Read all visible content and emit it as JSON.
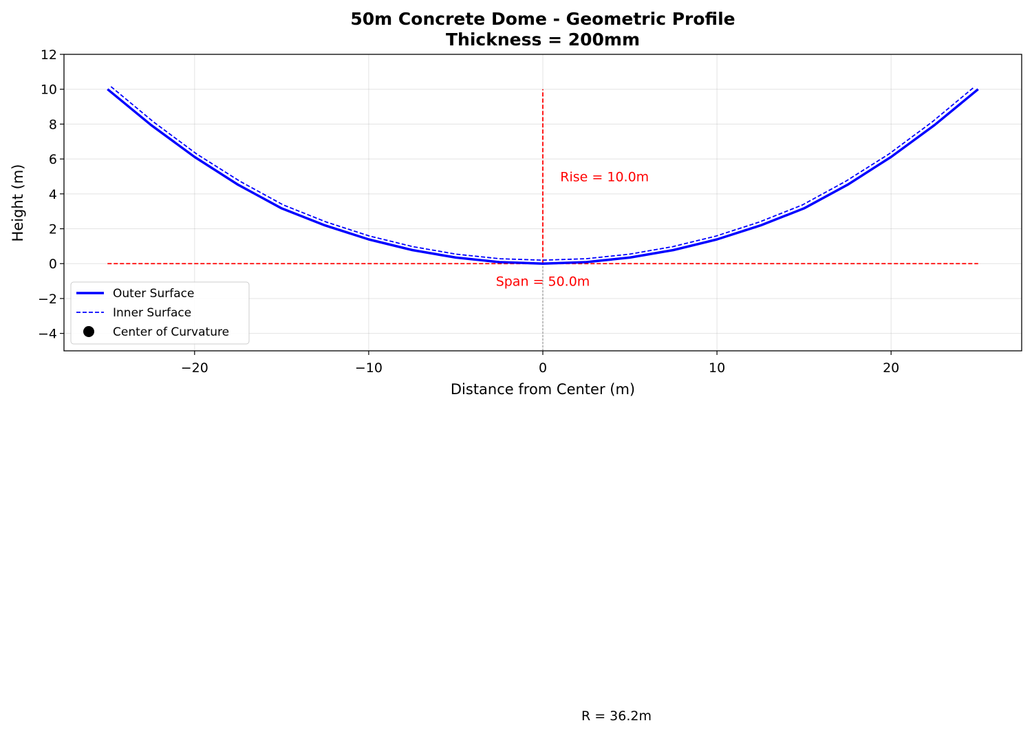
{
  "chart_data": {
    "type": "line",
    "title": "50m Concrete Dome - Geometric Profile",
    "subtitle": "Thickness = 200mm",
    "xlabel": "Distance from Center (m)",
    "ylabel": "Height (m)",
    "xlim": [
      -27.5,
      27.5
    ],
    "ylim": [
      -5,
      12
    ],
    "xticks": [
      -20,
      -10,
      0,
      10,
      20
    ],
    "xtick_labels": [
      "−20",
      "−10",
      "0",
      "10",
      "20"
    ],
    "yticks": [
      -4,
      -2,
      0,
      2,
      4,
      6,
      8,
      10,
      12
    ],
    "ytick_labels": [
      "−4",
      "−2",
      "0",
      "2",
      "4",
      "6",
      "8",
      "10",
      "12"
    ],
    "grid": true,
    "legend_position": "lower-left",
    "series": [
      {
        "name": "Outer Surface",
        "style": "solid",
        "color": "#0000ff",
        "x": [
          -25,
          -22.5,
          -20,
          -17.5,
          -15,
          -12.5,
          -10,
          -7.5,
          -5,
          -2.5,
          0,
          2.5,
          5,
          7.5,
          10,
          12.5,
          15,
          17.5,
          20,
          22.5,
          25
        ],
        "y": [
          10.0,
          7.95,
          6.12,
          4.52,
          3.17,
          2.19,
          1.39,
          0.78,
          0.35,
          0.09,
          0.0,
          0.09,
          0.35,
          0.78,
          1.39,
          2.19,
          3.17,
          4.52,
          6.12,
          7.95,
          10.0
        ]
      },
      {
        "name": "Inner Surface",
        "style": "dashed",
        "color": "#0000ff",
        "x": [
          -24.8,
          -22.35,
          -19.87,
          -17.39,
          -14.9,
          -12.42,
          -9.94,
          -7.45,
          -4.97,
          -2.48,
          0,
          2.48,
          4.97,
          7.45,
          9.94,
          12.42,
          14.9,
          17.39,
          19.87,
          22.35,
          24.8
        ],
        "y": [
          10.15,
          8.12,
          6.28,
          4.72,
          3.36,
          2.38,
          1.58,
          0.97,
          0.54,
          0.28,
          0.2,
          0.28,
          0.54,
          0.97,
          1.58,
          2.38,
          3.36,
          4.72,
          6.28,
          8.12,
          10.15
        ]
      },
      {
        "name": "Center of Curvature",
        "style": "marker",
        "color": "#000000",
        "x": [],
        "y": []
      }
    ],
    "reference_lines": [
      {
        "kind": "span",
        "x": [
          -25,
          25
        ],
        "y": [
          0,
          0
        ],
        "color": "#ff0000",
        "style": "dashed"
      },
      {
        "kind": "rise",
        "x": [
          0,
          0
        ],
        "y": [
          0,
          10
        ],
        "color": "#ff0000",
        "style": "dashed"
      },
      {
        "kind": "center",
        "x": [
          0,
          0
        ],
        "y": [
          -5,
          0
        ],
        "color": "#808080",
        "style": "dashed"
      }
    ],
    "annotations": [
      {
        "text": "Rise = 10.0m",
        "x": 1.0,
        "y": 5.0
      },
      {
        "text": "Span = 50.0m",
        "x": 0.0,
        "y": -1.0
      }
    ],
    "outside_note": "R = 36.2m"
  }
}
